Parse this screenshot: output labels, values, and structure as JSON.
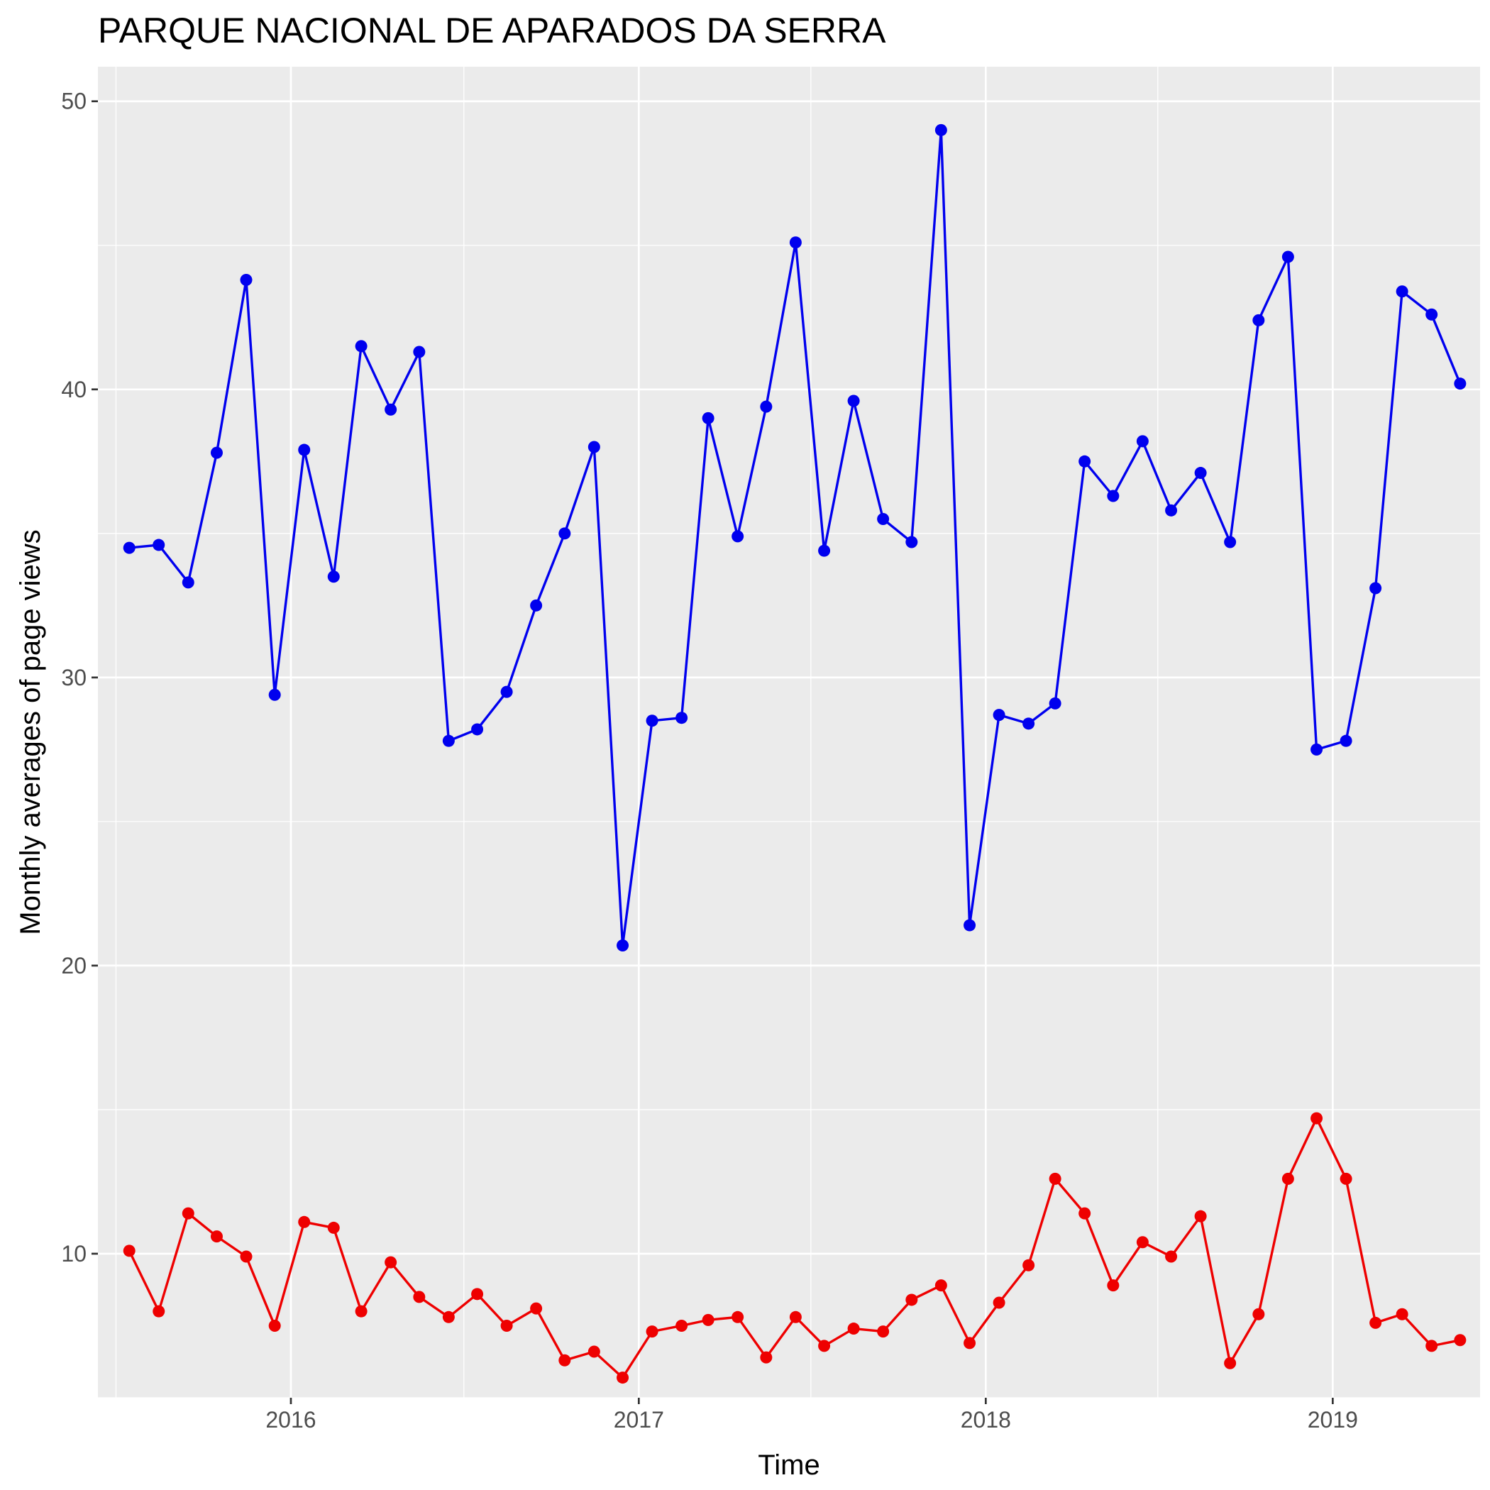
{
  "chart_data": {
    "type": "line",
    "title": "PARQUE NACIONAL DE APARADOS DA SERRA",
    "xlabel": "Time",
    "ylabel": "Monthly averages of page views",
    "x_ticks": [
      "2016",
      "2017",
      "2018",
      "2019"
    ],
    "y_ticks": [
      10,
      20,
      30,
      40,
      50
    ],
    "xlim": [
      "2015-06-12",
      "2019-06-05"
    ],
    "ylim": [
      5,
      51.2
    ],
    "grid": true,
    "legend": "none",
    "x": [
      "2015-07",
      "2015-08",
      "2015-09",
      "2015-10",
      "2015-11",
      "2015-12",
      "2016-01",
      "2016-02",
      "2016-03",
      "2016-04",
      "2016-05",
      "2016-06",
      "2016-07",
      "2016-08",
      "2016-09",
      "2016-10",
      "2016-11",
      "2016-12",
      "2017-01",
      "2017-02",
      "2017-03",
      "2017-04",
      "2017-05",
      "2017-06",
      "2017-07",
      "2017-08",
      "2017-09",
      "2017-10",
      "2017-11",
      "2017-12",
      "2018-01",
      "2018-02",
      "2018-03",
      "2018-04",
      "2018-05",
      "2018-06",
      "2018-07",
      "2018-08",
      "2018-09",
      "2018-10",
      "2018-11",
      "2018-12",
      "2019-01",
      "2019-02",
      "2019-03",
      "2019-04",
      "2019-05"
    ],
    "series": [
      {
        "color": "#0000ee",
        "values": [
          34.5,
          34.6,
          33.3,
          37.8,
          43.8,
          29.4,
          37.9,
          33.5,
          41.5,
          39.3,
          41.3,
          27.8,
          28.2,
          29.5,
          32.5,
          35.0,
          38.0,
          20.7,
          28.5,
          28.6,
          39.0,
          34.9,
          39.4,
          45.1,
          34.4,
          39.6,
          35.5,
          34.7,
          49.0,
          21.4,
          28.7,
          28.4,
          29.1,
          37.5,
          36.3,
          38.2,
          35.8,
          37.1,
          34.7,
          42.4,
          44.6,
          27.5,
          27.8,
          33.1,
          43.4,
          42.6,
          40.2
        ]
      },
      {
        "color": "#ee0000",
        "values": [
          10.1,
          8.0,
          11.4,
          10.6,
          9.9,
          7.5,
          11.1,
          10.9,
          8.0,
          9.7,
          8.5,
          7.8,
          8.6,
          7.5,
          8.1,
          6.3,
          6.6,
          5.7,
          7.3,
          7.5,
          7.7,
          7.8,
          6.4,
          7.8,
          6.8,
          7.4,
          7.3,
          8.4,
          8.9,
          6.9,
          8.3,
          9.6,
          12.6,
          11.4,
          8.9,
          10.4,
          9.9,
          11.3,
          6.2,
          7.9,
          12.6,
          14.7,
          12.6,
          7.6,
          7.9,
          6.8,
          7.0
        ]
      }
    ]
  }
}
